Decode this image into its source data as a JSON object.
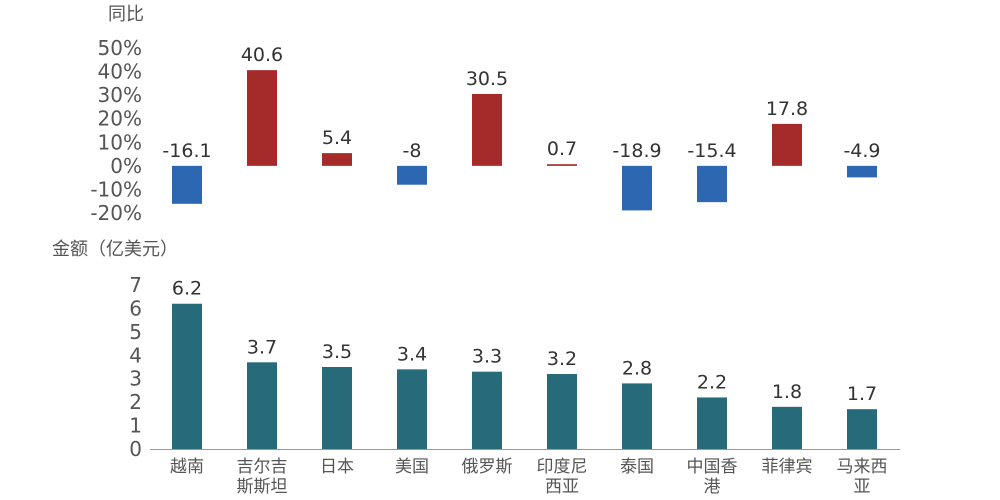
{
  "chart_data": [
    {
      "type": "bar",
      "ylabel": "同比",
      "categories": [
        "越南",
        "吉尔吉斯斯坦",
        "日本",
        "美国",
        "俄罗斯",
        "印度尼西亚",
        "泰国",
        "中国香港",
        "菲律宾",
        "马来西亚"
      ],
      "values": [
        -16.1,
        40.6,
        5.4,
        -8,
        30.5,
        0.7,
        -18.9,
        -15.4,
        17.8,
        -4.9
      ],
      "data_labels": [
        "-16.1",
        "40.6",
        "5.4",
        "-8",
        "30.5",
        "0.7",
        "-18.9",
        "-15.4",
        "17.8",
        "-4.9"
      ],
      "ylim": [
        -20,
        50
      ],
      "yticks": [
        "50%",
        "40%",
        "30%",
        "20%",
        "10%",
        "0%",
        "-10%",
        "-20%"
      ],
      "colors": {
        "positive": "#A52A2A",
        "negative": "#2E67B1"
      }
    },
    {
      "type": "bar",
      "ylabel": "金额（亿美元）",
      "categories": [
        "越南",
        "吉尔吉斯斯坦",
        "日本",
        "美国",
        "俄罗斯",
        "印度尼西亚",
        "泰国",
        "中国香港",
        "菲律宾",
        "马来西亚"
      ],
      "category_labels": [
        [
          "越南"
        ],
        [
          "吉尔吉",
          "斯斯坦"
        ],
        [
          "日本"
        ],
        [
          "美国"
        ],
        [
          "俄罗斯"
        ],
        [
          "印度尼",
          "西亚"
        ],
        [
          "泰国"
        ],
        [
          "中国香",
          "港"
        ],
        [
          "菲律宾"
        ],
        [
          "马来西",
          "亚"
        ]
      ],
      "values": [
        6.2,
        3.7,
        3.5,
        3.4,
        3.3,
        3.2,
        2.8,
        2.2,
        1.8,
        1.7
      ],
      "data_labels": [
        "6.2",
        "3.7",
        "3.5",
        "3.4",
        "3.3",
        "3.2",
        "2.8",
        "2.2",
        "1.8",
        "1.7"
      ],
      "ylim": [
        0,
        7
      ],
      "yticks": [
        "7",
        "6",
        "5",
        "4",
        "3",
        "2",
        "1",
        "0"
      ],
      "colors": {
        "bar": "#276A7A",
        "axis": "#999999"
      }
    }
  ]
}
